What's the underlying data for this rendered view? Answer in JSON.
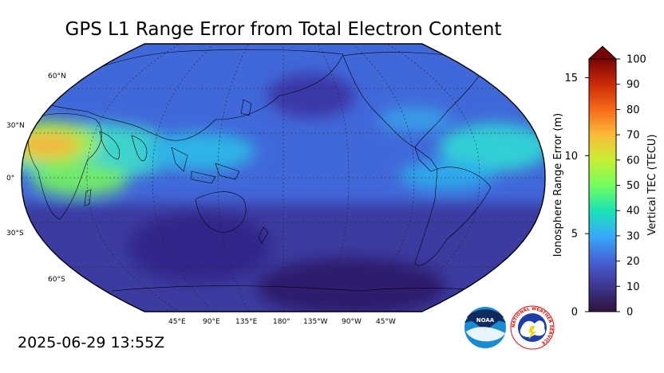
{
  "title": "GPS L1 Range Error from Total Electron Content",
  "timestamp": "2025-06-29 13:55Z",
  "map": {
    "projection": "robinson",
    "central_longitude": 180,
    "lat_labels": [
      "60°N",
      "30°N",
      "0°",
      "30°S",
      "60°S"
    ],
    "lon_labels": [
      "45°E",
      "90°E",
      "135°E",
      "180°",
      "135°W",
      "90°W",
      "45°W"
    ]
  },
  "colorbar": {
    "left_label": "Ionosphere Range Error (m)",
    "right_label": "Vertical TEC (TECU)",
    "left_ticks": [
      "0",
      "5",
      "10",
      "15"
    ],
    "right_ticks": [
      "0",
      "10",
      "20",
      "30",
      "40",
      "50",
      "60",
      "70",
      "80",
      "90",
      "100"
    ],
    "tec_range": [
      0,
      100
    ],
    "range_error_m_range": [
      0,
      16.2
    ],
    "colors": [
      "#30123b",
      "#3e378f",
      "#4662d7",
      "#36aaf9",
      "#1ae4b6",
      "#72fe5e",
      "#c8ef34",
      "#faba39",
      "#f66b19",
      "#cb2a04",
      "#7a0403"
    ]
  },
  "logos": {
    "noaa": "NOAA",
    "nws": "NATIONAL WEATHER SERVICE"
  },
  "colors": {
    "land_outline": "#000000",
    "grid": "#222222"
  }
}
